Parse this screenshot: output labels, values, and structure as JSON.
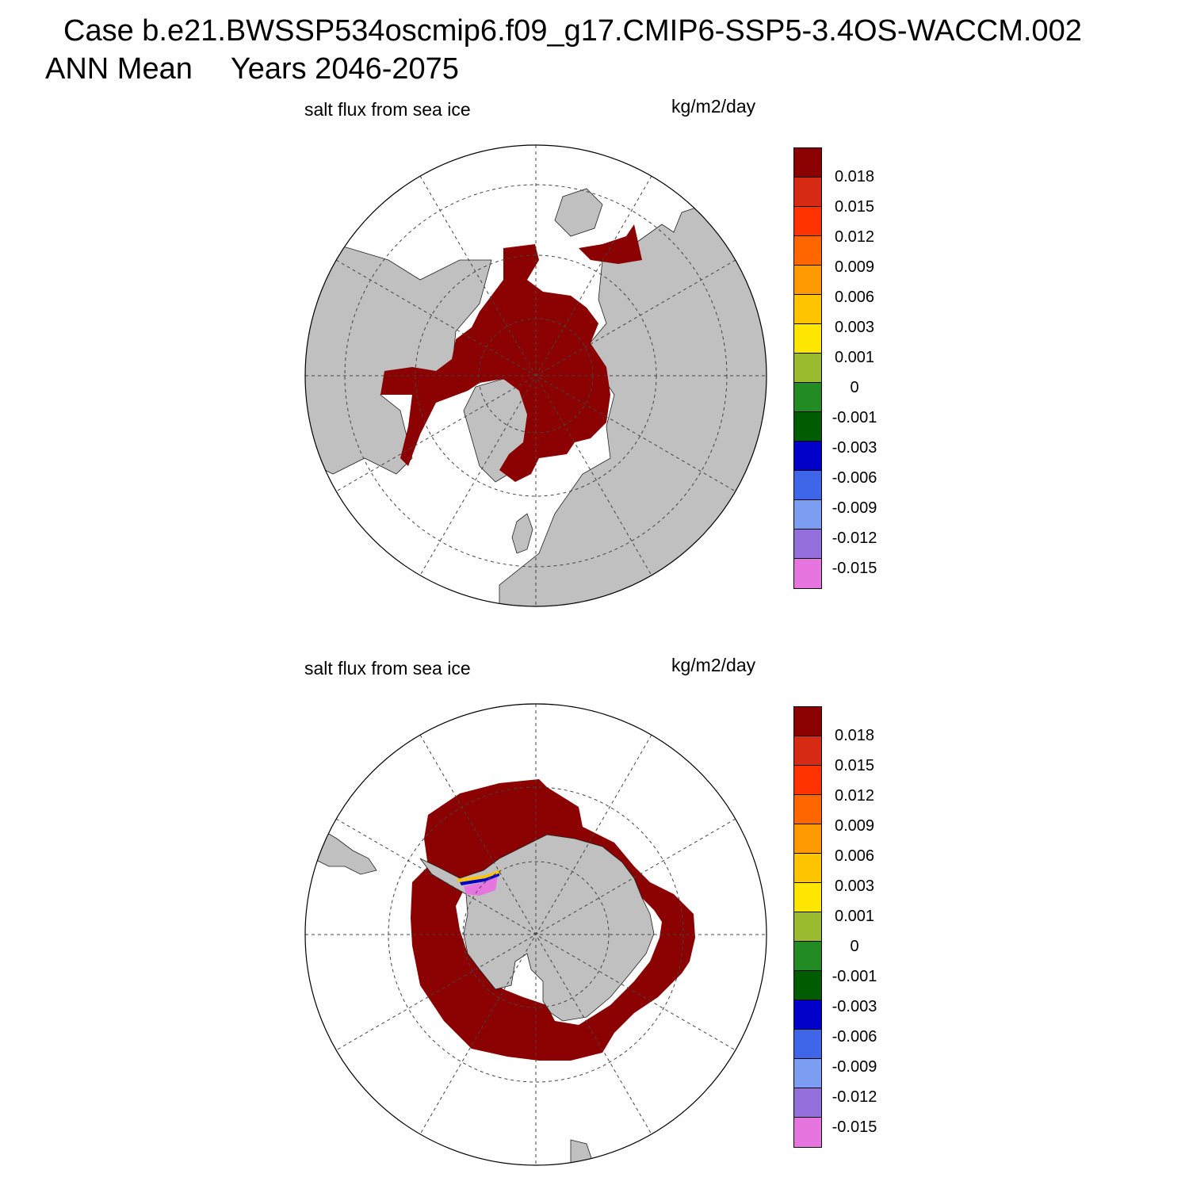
{
  "header": {
    "case_line": "Case b.e21.BWSSP534oscmip6.f09_g17.CMIP6-SSP5-3.4OS-WACCM.002",
    "mean_label": "ANN Mean",
    "years_label": "Years 2046-2075"
  },
  "panels": [
    {
      "id": "north",
      "variable": "salt flux from sea ice",
      "units": "kg/m2/day",
      "hemisphere": "north-polar-stereographic"
    },
    {
      "id": "south",
      "variable": "salt flux from sea ice",
      "units": "kg/m2/day",
      "hemisphere": "south-polar-stereographic"
    }
  ],
  "colorbar": {
    "colors": [
      "#8b0000",
      "#d62a14",
      "#ff3300",
      "#ff6600",
      "#ff9900",
      "#ffc400",
      "#ffe600",
      "#9abb30",
      "#238b23",
      "#005c00",
      "#0000c8",
      "#3f66e8",
      "#7b9ef2",
      "#9370dc",
      "#e675e0"
    ],
    "labels": [
      "0.018",
      "0.015",
      "0.012",
      "0.009",
      "0.006",
      "0.003",
      "0.001",
      "0",
      "-0.001",
      "-0.003",
      "-0.006",
      "-0.009",
      "-0.012",
      "-0.015"
    ]
  },
  "map_colors": {
    "land": "#c0c0c0",
    "ice_flux": "#8b0000",
    "ocean": "#ffffff"
  }
}
